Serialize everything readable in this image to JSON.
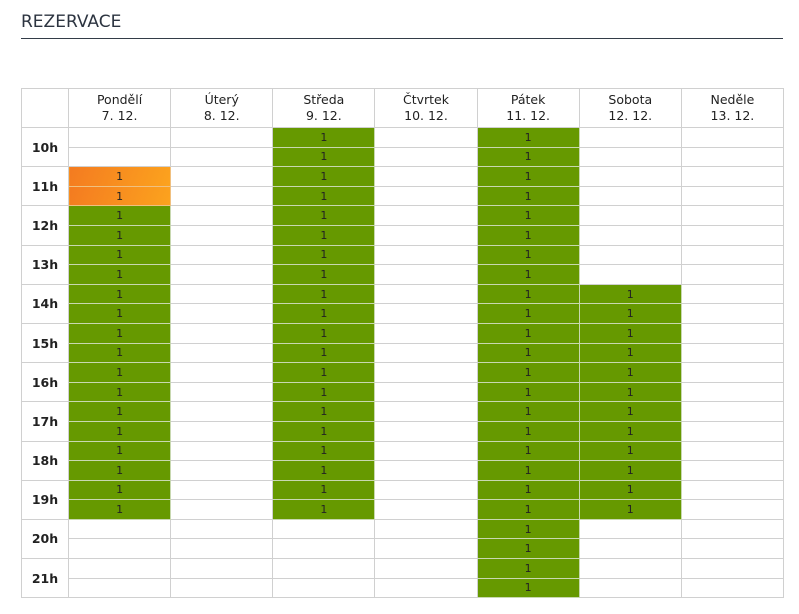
{
  "title": "REZERVACE",
  "colors": {
    "booked": "#669900",
    "pending": "#f7901e"
  },
  "hours": [
    "10h",
    "11h",
    "12h",
    "13h",
    "14h",
    "15h",
    "16h",
    "17h",
    "18h",
    "19h",
    "20h",
    "21h"
  ],
  "days": [
    {
      "name": "Pondělí",
      "date": "7. 12.",
      "cells": [
        "",
        "",
        "o",
        "o",
        "g",
        "g",
        "g",
        "g",
        "g",
        "g",
        "g",
        "g",
        "g",
        "g",
        "g",
        "g",
        "g",
        "g",
        "g",
        "g",
        "",
        "",
        "",
        ""
      ]
    },
    {
      "name": "Úterý",
      "date": "8. 12.",
      "cells": [
        "",
        "",
        "",
        "",
        "",
        "",
        "",
        "",
        "",
        "",
        "",
        "",
        "",
        "",
        "",
        "",
        "",
        "",
        "",
        "",
        "",
        "",
        "",
        ""
      ]
    },
    {
      "name": "Středa",
      "date": "9. 12.",
      "cells": [
        "g",
        "g",
        "g",
        "g",
        "g",
        "g",
        "g",
        "g",
        "g",
        "g",
        "g",
        "g",
        "g",
        "g",
        "g",
        "g",
        "g",
        "g",
        "g",
        "g",
        "",
        "",
        "",
        ""
      ]
    },
    {
      "name": "Čtvrtek",
      "date": "10. 12.",
      "cells": [
        "",
        "",
        "",
        "",
        "",
        "",
        "",
        "",
        "",
        "",
        "",
        "",
        "",
        "",
        "",
        "",
        "",
        "",
        "",
        "",
        "",
        "",
        "",
        ""
      ]
    },
    {
      "name": "Pátek",
      "date": "11. 12.",
      "cells": [
        "g",
        "g",
        "g",
        "g",
        "g",
        "g",
        "g",
        "g",
        "g",
        "g",
        "g",
        "g",
        "g",
        "g",
        "g",
        "g",
        "g",
        "g",
        "g",
        "g",
        "g",
        "g",
        "g",
        "g"
      ]
    },
    {
      "name": "Sobota",
      "date": "12. 12.",
      "cells": [
        "",
        "",
        "",
        "",
        "",
        "",
        "",
        "",
        "g",
        "g",
        "g",
        "g",
        "g",
        "g",
        "g",
        "g",
        "g",
        "g",
        "g",
        "g",
        "",
        "",
        "",
        ""
      ]
    },
    {
      "name": "Neděle",
      "date": "13. 12.",
      "cells": [
        "",
        "",
        "",
        "",
        "",
        "",
        "",
        "",
        "",
        "",
        "",
        "",
        "",
        "",
        "",
        "",
        "",
        "",
        "",
        "",
        "",
        "",
        "",
        ""
      ]
    }
  ],
  "slot_label": "1"
}
